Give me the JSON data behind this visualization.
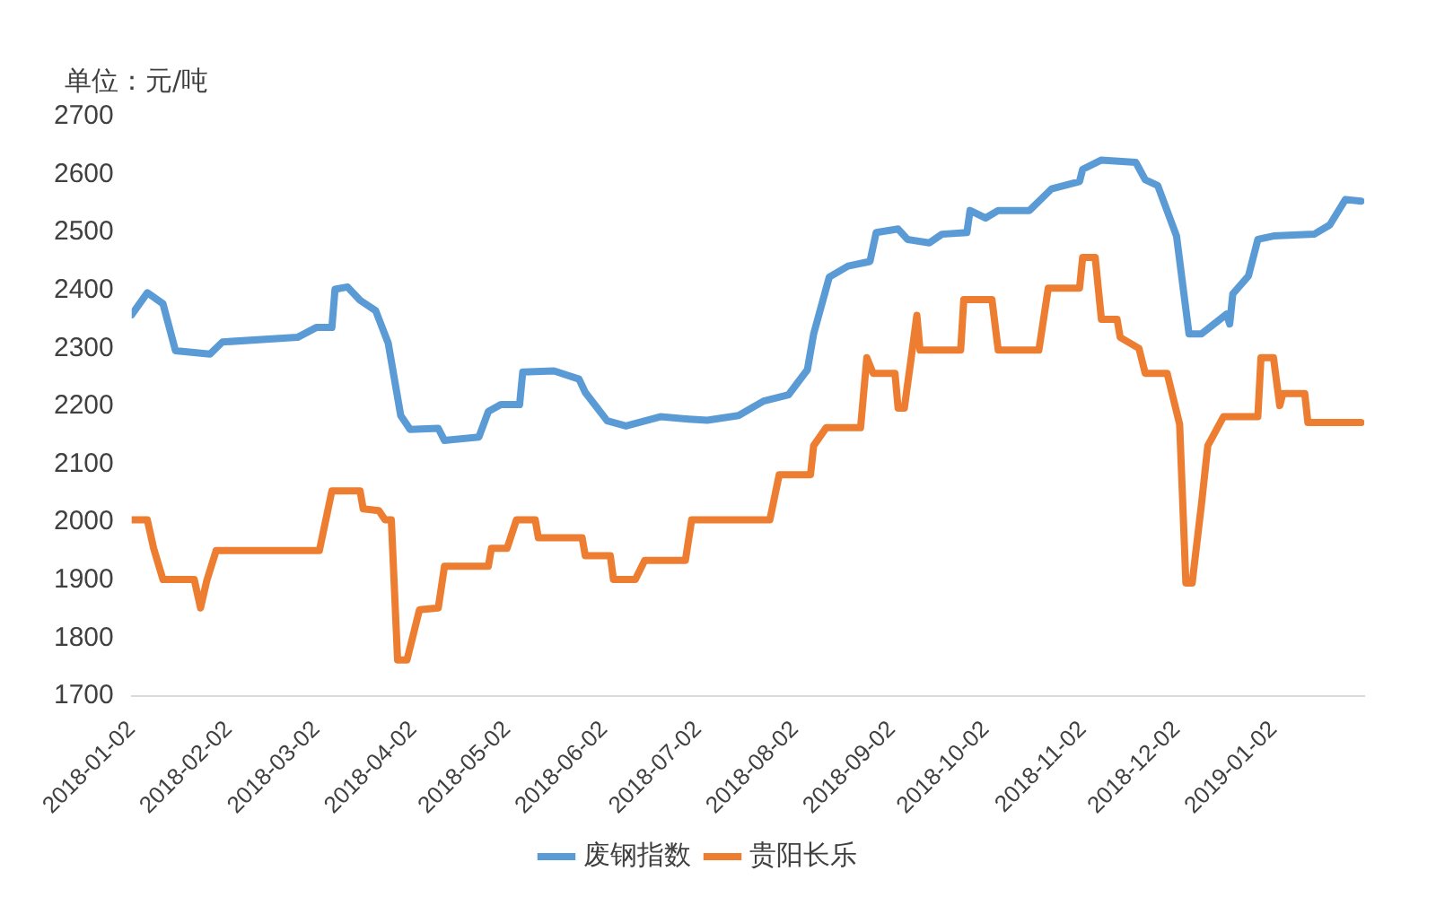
{
  "chart_data": {
    "type": "line",
    "ylabel": "单位：元/吨",
    "xlim": [
      "2018-01-02",
      "2019-01-31"
    ],
    "xticks": [
      "2018-01-02",
      "2018-02-02",
      "2018-03-02",
      "2018-04-02",
      "2018-05-02",
      "2018-06-02",
      "2018-07-02",
      "2018-08-02",
      "2018-09-02",
      "2018-10-02",
      "2018-11-02",
      "2018-12-02",
      "2019-01-02"
    ],
    "ylim": [
      1700,
      2700
    ],
    "yticks": [
      1700,
      1800,
      1900,
      2000,
      2100,
      2200,
      2300,
      2400,
      2500,
      2600,
      2700
    ],
    "grid": false,
    "legend": "bottom",
    "marker": "none",
    "series": [
      {
        "name": "废钢指数",
        "color": "#5b9bd5",
        "x": [
          "2018-01-02",
          "2018-01-07",
          "2018-01-12",
          "2018-01-16",
          "2018-01-27",
          "2018-01-31",
          "2018-02-24",
          "2018-03-02",
          "2018-03-07",
          "2018-03-08",
          "2018-03-12",
          "2018-03-16",
          "2018-03-21",
          "2018-03-25",
          "2018-03-29",
          "2018-04-01",
          "2018-04-10",
          "2018-04-12",
          "2018-04-23",
          "2018-04-26",
          "2018-04-30",
          "2018-05-06",
          "2018-05-07",
          "2018-05-17",
          "2018-05-25",
          "2018-05-27",
          "2018-06-03",
          "2018-06-09",
          "2018-06-20",
          "2018-06-29",
          "2018-07-05",
          "2018-07-15",
          "2018-07-23",
          "2018-07-31",
          "2018-08-06",
          "2018-08-08",
          "2018-08-13",
          "2018-08-19",
          "2018-08-26",
          "2018-08-28",
          "2018-09-04",
          "2018-09-07",
          "2018-09-14",
          "2018-09-18",
          "2018-09-26",
          "2018-09-27",
          "2018-10-02",
          "2018-10-06",
          "2018-10-16",
          "2018-10-23",
          "2018-11-01",
          "2018-11-02",
          "2018-11-08",
          "2018-11-19",
          "2018-11-22",
          "2018-11-26",
          "2018-12-02",
          "2018-12-06",
          "2018-12-10",
          "2018-12-18",
          "2018-12-19",
          "2018-12-20",
          "2018-12-25",
          "2018-12-28",
          "2019-01-02",
          "2019-01-15",
          "2019-01-20",
          "2019-01-25",
          "2019-01-30"
        ],
        "values": [
          2358,
          2396,
          2377,
          2296,
          2290,
          2311,
          2319,
          2336,
          2336,
          2402,
          2406,
          2383,
          2365,
          2309,
          2184,
          2160,
          2162,
          2141,
          2147,
          2191,
          2203,
          2203,
          2259,
          2261,
          2247,
          2224,
          2175,
          2166,
          2182,
          2178,
          2176,
          2184,
          2209,
          2220,
          2263,
          2325,
          2423,
          2442,
          2450,
          2500,
          2506,
          2488,
          2482,
          2497,
          2500,
          2538,
          2525,
          2538,
          2538,
          2575,
          2588,
          2609,
          2625,
          2621,
          2591,
          2581,
          2494,
          2325,
          2325,
          2359,
          2342,
          2394,
          2425,
          2488,
          2494,
          2497,
          2513,
          2557,
          2554
        ]
      },
      {
        "name": "贵阳长乐",
        "color": "#ed7d31",
        "x": [
          "2018-01-02",
          "2018-01-07",
          "2018-01-09",
          "2018-01-12",
          "2018-01-22",
          "2018-01-24",
          "2018-01-26",
          "2018-01-29",
          "2018-03-03",
          "2018-03-07",
          "2018-03-16",
          "2018-03-17",
          "2018-03-22",
          "2018-03-24",
          "2018-03-26",
          "2018-03-28",
          "2018-03-31",
          "2018-04-04",
          "2018-04-10",
          "2018-04-12",
          "2018-04-26",
          "2018-04-27",
          "2018-05-02",
          "2018-05-05",
          "2018-05-11",
          "2018-05-12",
          "2018-05-26",
          "2018-05-27",
          "2018-06-04",
          "2018-06-05",
          "2018-06-12",
          "2018-06-15",
          "2018-06-28",
          "2018-06-30",
          "2018-07-25",
          "2018-07-28",
          "2018-08-07",
          "2018-08-08",
          "2018-08-12",
          "2018-08-23",
          "2018-08-25",
          "2018-08-27",
          "2018-09-03",
          "2018-09-04",
          "2018-09-06",
          "2018-09-08",
          "2018-09-10",
          "2018-09-11",
          "2018-09-24",
          "2018-09-25",
          "2018-10-04",
          "2018-10-06",
          "2018-10-19",
          "2018-10-22",
          "2018-11-01",
          "2018-11-02",
          "2018-11-06",
          "2018-11-08",
          "2018-11-13",
          "2018-11-14",
          "2018-11-20",
          "2018-11-22",
          "2018-11-29",
          "2018-12-03",
          "2018-12-05",
          "2018-12-07",
          "2018-12-10",
          "2018-12-12",
          "2018-12-17",
          "2018-12-28",
          "2018-12-29",
          "2019-01-02",
          "2019-01-04",
          "2019-01-05",
          "2019-01-12",
          "2019-01-13",
          "2019-01-30"
        ],
        "values": [
          2004,
          2004,
          1955,
          1901,
          1901,
          1852,
          1899,
          1951,
          1951,
          2054,
          2054,
          2023,
          2020,
          2004,
          2004,
          1762,
          1762,
          1849,
          1852,
          1924,
          1924,
          1955,
          1955,
          2004,
          2004,
          1973,
          1973,
          1942,
          1942,
          1901,
          1901,
          1934,
          1934,
          2004,
          2004,
          2082,
          2082,
          2132,
          2163,
          2163,
          2284,
          2257,
          2257,
          2197,
          2197,
          2276,
          2357,
          2297,
          2297,
          2384,
          2384,
          2297,
          2297,
          2404,
          2404,
          2457,
          2457,
          2350,
          2350,
          2319,
          2300,
          2257,
          2257,
          2169,
          1895,
          1895,
          2032,
          2132,
          2182,
          2182,
          2284,
          2284,
          2201,
          2222,
          2222,
          2172,
          2172
        ]
      }
    ]
  }
}
